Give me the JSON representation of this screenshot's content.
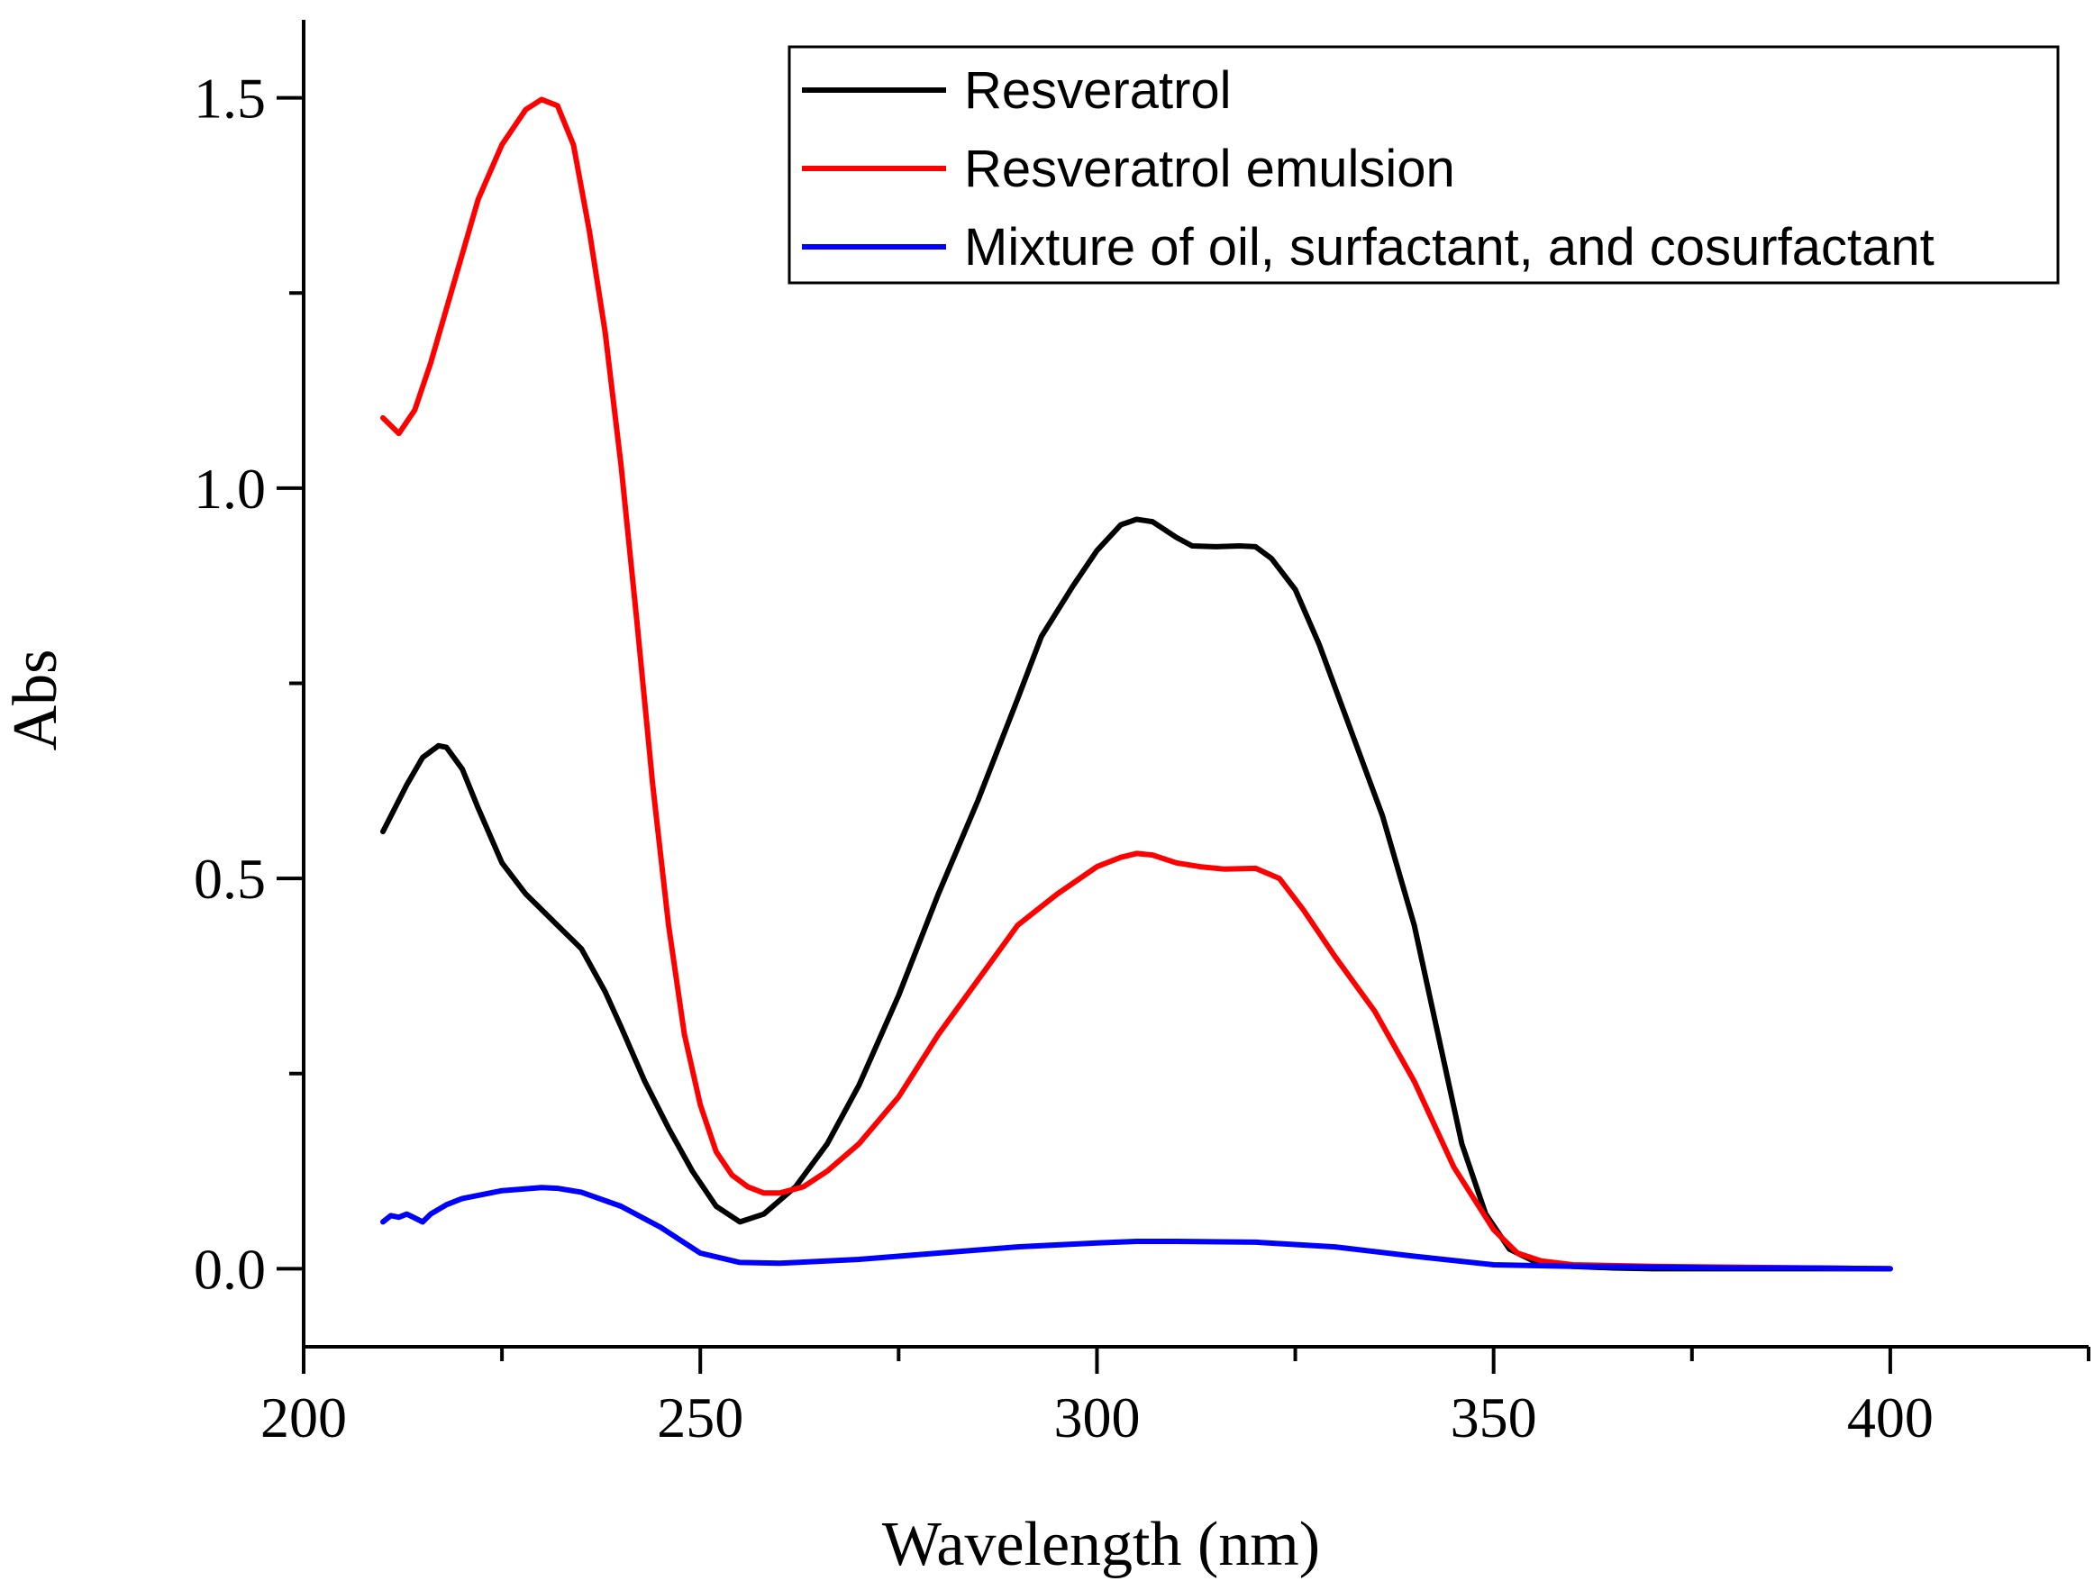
{
  "chart_data": {
    "type": "line",
    "xlabel": "Wavelength (nm)",
    "ylabel": "Abs",
    "xlim": [
      200,
      425
    ],
    "ylim": [
      -0.1,
      1.6
    ],
    "x_ticks": [
      200,
      250,
      300,
      350,
      400
    ],
    "x_tick_labels": [
      "200",
      "250",
      "300",
      "350",
      "400"
    ],
    "x_minor_ticks": [
      225,
      275,
      325,
      375,
      425
    ],
    "y_ticks": [
      0.0,
      0.5,
      1.0,
      1.5
    ],
    "y_tick_labels": [
      "0.0",
      "0.5",
      "1.0",
      "1.5"
    ],
    "y_minor_ticks": [
      0.25,
      0.75,
      1.25
    ],
    "legend_position": "top-right",
    "series": [
      {
        "name": "Resveratrol",
        "color": "#000000",
        "x": [
          210,
          213,
          215,
          217,
          218,
          220,
          222,
          225,
          228,
          232,
          235,
          238,
          240,
          243,
          246,
          249,
          252,
          255,
          258,
          262,
          266,
          270,
          275,
          280,
          285,
          290,
          293,
          297,
          300,
          303,
          305,
          307,
          310,
          312,
          315,
          318,
          320,
          322,
          325,
          328,
          332,
          336,
          340,
          343,
          346,
          349,
          352,
          355,
          360,
          365,
          370,
          380,
          390,
          400
        ],
        "y": [
          0.56,
          0.62,
          0.655,
          0.67,
          0.668,
          0.64,
          0.59,
          0.52,
          0.48,
          0.44,
          0.41,
          0.355,
          0.31,
          0.24,
          0.18,
          0.125,
          0.08,
          0.06,
          0.07,
          0.105,
          0.16,
          0.235,
          0.35,
          0.48,
          0.6,
          0.73,
          0.81,
          0.875,
          0.92,
          0.953,
          0.96,
          0.957,
          0.937,
          0.926,
          0.925,
          0.926,
          0.925,
          0.91,
          0.87,
          0.8,
          0.69,
          0.58,
          0.44,
          0.3,
          0.16,
          0.07,
          0.025,
          0.01,
          0.003,
          0.001,
          0.0,
          0.0,
          0.0,
          0.0
        ]
      },
      {
        "name": "Resveratrol emulsion",
        "color": "#ff0000",
        "x": [
          210,
          212,
          214,
          216,
          218,
          220,
          222,
          225,
          228,
          230,
          232,
          234,
          236,
          238,
          240,
          242,
          244,
          246,
          248,
          250,
          252,
          254,
          256,
          258,
          260,
          263,
          266,
          270,
          275,
          280,
          285,
          290,
          295,
          300,
          303,
          305,
          307,
          310,
          313,
          316,
          320,
          323,
          326,
          330,
          335,
          340,
          345,
          350,
          353,
          356,
          360,
          370,
          380,
          390,
          400
        ],
        "y": [
          1.09,
          1.07,
          1.1,
          1.16,
          1.23,
          1.3,
          1.37,
          1.44,
          1.485,
          1.498,
          1.49,
          1.44,
          1.33,
          1.2,
          1.03,
          0.83,
          0.62,
          0.44,
          0.3,
          0.21,
          0.15,
          0.12,
          0.105,
          0.097,
          0.097,
          0.105,
          0.125,
          0.16,
          0.22,
          0.3,
          0.37,
          0.44,
          0.48,
          0.515,
          0.527,
          0.532,
          0.53,
          0.52,
          0.515,
          0.512,
          0.513,
          0.5,
          0.46,
          0.4,
          0.33,
          0.24,
          0.13,
          0.05,
          0.02,
          0.01,
          0.005,
          0.003,
          0.002,
          0.001,
          0.0
        ]
      },
      {
        "name": "Mixture of oil, surfactant, and cosurfactant",
        "color": "#0000ff",
        "x": [
          210,
          211,
          212,
          213,
          214,
          215,
          216,
          218,
          220,
          225,
          230,
          232,
          235,
          240,
          245,
          250,
          255,
          260,
          270,
          280,
          290,
          300,
          305,
          310,
          320,
          330,
          340,
          350,
          360,
          370,
          380,
          390,
          400
        ],
        "y": [
          0.06,
          0.068,
          0.066,
          0.07,
          0.065,
          0.06,
          0.07,
          0.082,
          0.09,
          0.1,
          0.104,
          0.103,
          0.098,
          0.08,
          0.053,
          0.02,
          0.008,
          0.007,
          0.012,
          0.02,
          0.028,
          0.033,
          0.035,
          0.035,
          0.034,
          0.028,
          0.016,
          0.005,
          0.003,
          0.002,
          0.001,
          0.001,
          0.0
        ]
      }
    ]
  }
}
